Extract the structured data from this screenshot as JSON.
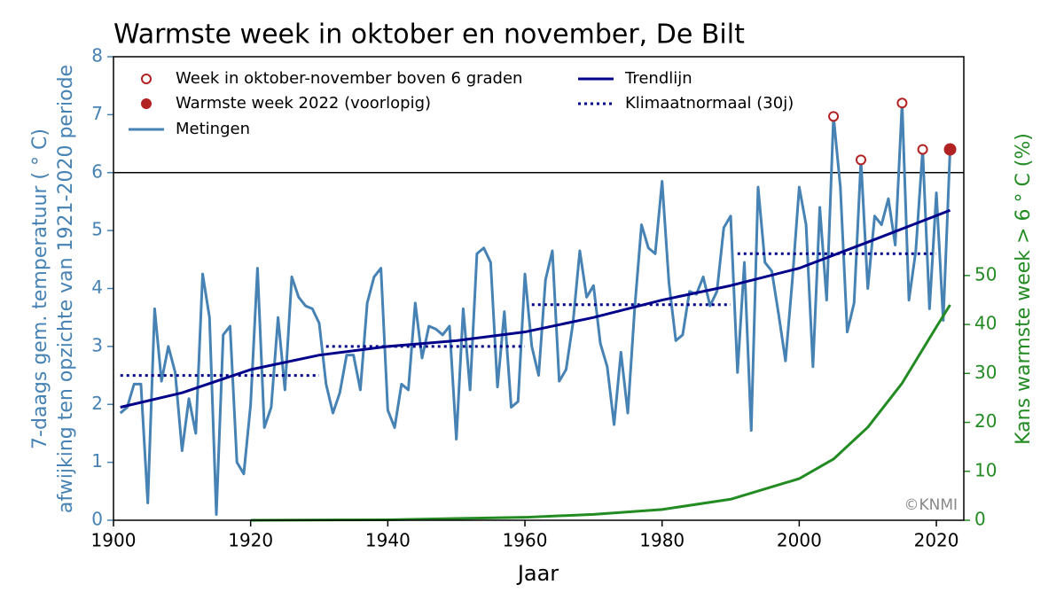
{
  "chart_data": {
    "type": "line",
    "title": "Warmste week in oktober en november, De Bilt",
    "xlabel": "Jaar",
    "ylabel": [
      "7-daags gem. temperatuur ( ° C)",
      "afwijking ten opzichte van 1921-2020 periode"
    ],
    "y2label": "Kans warmste week > 6 ° C (%)",
    "copyright": "©KNMI",
    "xlim": [
      1900,
      2024
    ],
    "xticks": [
      1900,
      1920,
      1940,
      1960,
      1980,
      2000,
      2020
    ],
    "ylim": [
      0,
      8
    ],
    "yticks": [
      0,
      1,
      2,
      3,
      4,
      5,
      6,
      7,
      8
    ],
    "y2lim": [
      0,
      94.7
    ],
    "y2ticks": [
      0,
      10,
      20,
      30,
      40,
      50
    ],
    "threshold": 6,
    "series": [
      {
        "name": "Metingen",
        "color": "#4682b4",
        "x": [
          1901,
          1902,
          1903,
          1904,
          1905,
          1906,
          1907,
          1908,
          1909,
          1910,
          1911,
          1912,
          1913,
          1914,
          1915,
          1916,
          1917,
          1918,
          1919,
          1920,
          1921,
          1922,
          1923,
          1924,
          1925,
          1926,
          1927,
          1928,
          1929,
          1930,
          1931,
          1932,
          1933,
          1934,
          1935,
          1936,
          1937,
          1938,
          1939,
          1940,
          1941,
          1942,
          1943,
          1944,
          1945,
          1946,
          1947,
          1948,
          1949,
          1950,
          1951,
          1952,
          1953,
          1954,
          1955,
          1956,
          1957,
          1958,
          1959,
          1960,
          1961,
          1962,
          1963,
          1964,
          1965,
          1966,
          1967,
          1968,
          1969,
          1970,
          1971,
          1972,
          1973,
          1974,
          1975,
          1976,
          1977,
          1978,
          1979,
          1980,
          1981,
          1982,
          1983,
          1984,
          1985,
          1986,
          1987,
          1988,
          1989,
          1990,
          1991,
          1992,
          1993,
          1994,
          1995,
          1996,
          1997,
          1998,
          1999,
          2000,
          2001,
          2002,
          2003,
          2004,
          2005,
          2006,
          2007,
          2008,
          2009,
          2010,
          2011,
          2012,
          2013,
          2014,
          2015,
          2016,
          2017,
          2018,
          2019,
          2020,
          2021,
          2022
        ],
        "values": [
          1.85,
          1.95,
          2.35,
          2.35,
          0.3,
          3.65,
          2.4,
          3.0,
          2.55,
          1.2,
          2.1,
          1.5,
          4.25,
          3.5,
          0.1,
          3.2,
          3.35,
          1.0,
          0.8,
          2.0,
          4.35,
          1.6,
          1.95,
          3.5,
          2.25,
          4.2,
          3.85,
          3.7,
          3.65,
          3.4,
          2.35,
          1.85,
          2.2,
          2.85,
          2.85,
          2.25,
          3.75,
          4.2,
          4.35,
          1.9,
          1.6,
          2.35,
          2.25,
          3.75,
          2.8,
          3.35,
          3.3,
          3.2,
          3.35,
          1.4,
          3.65,
          2.25,
          4.6,
          4.7,
          4.45,
          2.3,
          3.6,
          1.95,
          2.05,
          4.25,
          3.0,
          2.5,
          4.15,
          4.65,
          2.4,
          2.6,
          3.4,
          4.65,
          3.85,
          4.05,
          3.05,
          2.65,
          1.65,
          2.9,
          1.85,
          3.65,
          5.1,
          4.7,
          4.6,
          5.85,
          4.1,
          3.1,
          3.2,
          3.95,
          3.9,
          4.2,
          3.7,
          3.95,
          5.05,
          5.25,
          2.55,
          4.45,
          1.55,
          5.75,
          4.45,
          4.3,
          3.55,
          2.75,
          4.15,
          5.75,
          5.1,
          2.65,
          5.4,
          3.8,
          6.97,
          5.75,
          3.25,
          3.75,
          6.22,
          4.0,
          5.25,
          5.1,
          5.55,
          4.75,
          7.2,
          3.8,
          4.65,
          6.4,
          3.65,
          5.65,
          3.45,
          6.4
        ]
      },
      {
        "name": "Trendlijn",
        "color": "#00008b",
        "x": [
          1901,
          1910,
          1920,
          1930,
          1940,
          1950,
          1960,
          1970,
          1980,
          1990,
          2000,
          2010,
          2022
        ],
        "values": [
          1.95,
          2.2,
          2.6,
          2.85,
          3.0,
          3.1,
          3.25,
          3.5,
          3.8,
          4.05,
          4.35,
          4.8,
          5.35
        ]
      },
      {
        "name": "Klimaatnormaal (30j)",
        "color": "#00008b",
        "style": "dotted",
        "segments": [
          {
            "x": [
              1901,
              1930
            ],
            "value": 2.5
          },
          {
            "x": [
              1931,
              1960
            ],
            "value": 3.0
          },
          {
            "x": [
              1961,
              1990
            ],
            "value": 3.72
          },
          {
            "x": [
              1991,
              2020
            ],
            "value": 4.6
          }
        ]
      },
      {
        "color": "#228b22",
        "axis": "y2",
        "x": [
          1920,
          1940,
          1960,
          1970,
          1980,
          1990,
          2000,
          2005,
          2010,
          2015,
          2020,
          2022
        ],
        "values": [
          0,
          0.1,
          0.6,
          1.2,
          2.2,
          4.3,
          8.5,
          12.5,
          19,
          28,
          39.5,
          44
        ]
      }
    ],
    "markers": [
      {
        "name": "Week in oktober-november boven 6 graden",
        "color": "#b22222",
        "filled": false
      },
      {
        "name": "Warmste week 2022 (voorlopig)",
        "color": "#b22222",
        "filled": true,
        "x": 2022
      }
    ]
  }
}
